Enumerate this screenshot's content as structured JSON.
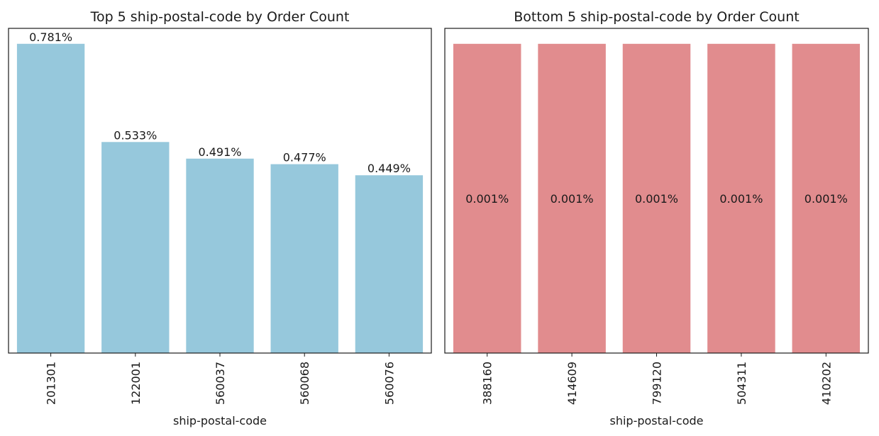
{
  "chart_data": [
    {
      "type": "bar",
      "title": "Top 5 ship-postal-code by Order Count",
      "xlabel": "ship-postal-code",
      "ylabel": "",
      "categories": [
        "201301",
        "122001",
        "560037",
        "560068",
        "560076"
      ],
      "values": [
        0.781,
        0.533,
        0.491,
        0.477,
        0.449
      ],
      "value_labels": [
        "0.781%",
        "0.533%",
        "0.491%",
        "0.477%",
        "0.449%"
      ],
      "ylim": [
        0,
        0.82
      ],
      "y_ticks_visible": false,
      "grid": false,
      "label_position": "above",
      "bar_color": "#96c8dc"
    },
    {
      "type": "bar",
      "title": "Bottom 5 ship-postal-code by Order Count",
      "xlabel": "ship-postal-code",
      "ylabel": "",
      "categories": [
        "388160",
        "414609",
        "799120",
        "504311",
        "410202"
      ],
      "values": [
        0.001,
        0.001,
        0.001,
        0.001,
        0.001
      ],
      "value_labels": [
        "0.001%",
        "0.001%",
        "0.001%",
        "0.001%",
        "0.001%"
      ],
      "ylim": [
        0,
        0.00105
      ],
      "y_ticks_visible": false,
      "grid": false,
      "label_position": "center",
      "bar_color": "#e18c8e"
    }
  ]
}
